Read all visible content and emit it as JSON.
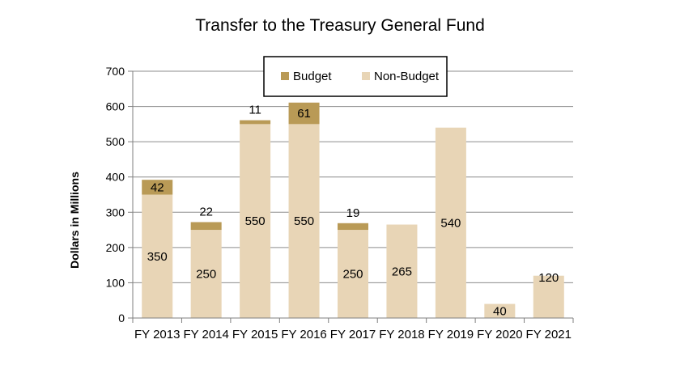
{
  "chart_data": {
    "type": "bar",
    "stacked": true,
    "title": "Transfer to the Treasury General Fund",
    "xlabel": "",
    "ylabel": "Dollars in Millions",
    "ylim": [
      0,
      700
    ],
    "yticks": [
      0,
      100,
      200,
      300,
      400,
      500,
      600,
      700
    ],
    "grid": true,
    "legend_position": "top-center",
    "categories": [
      "FY 2013",
      "FY 2014",
      "FY 2015",
      "FY 2016",
      "FY 2017",
      "FY 2018",
      "FY 2019",
      "FY 2020",
      "FY 2021"
    ],
    "series": [
      {
        "name": "Non-Budget",
        "color": "#e8d5b6",
        "values": [
          350,
          250,
          550,
          550,
          250,
          265,
          540,
          40,
          120
        ],
        "labels": [
          "350",
          "250",
          "550",
          "550",
          "250",
          "265",
          "540",
          "40",
          "120"
        ]
      },
      {
        "name": "Budget",
        "color": "#b99a56",
        "values": [
          42,
          22,
          11,
          61,
          19,
          0,
          0,
          0,
          0
        ],
        "labels": [
          "42",
          "22",
          "11",
          "61",
          "19",
          "",
          "",
          "",
          ""
        ]
      }
    ]
  }
}
